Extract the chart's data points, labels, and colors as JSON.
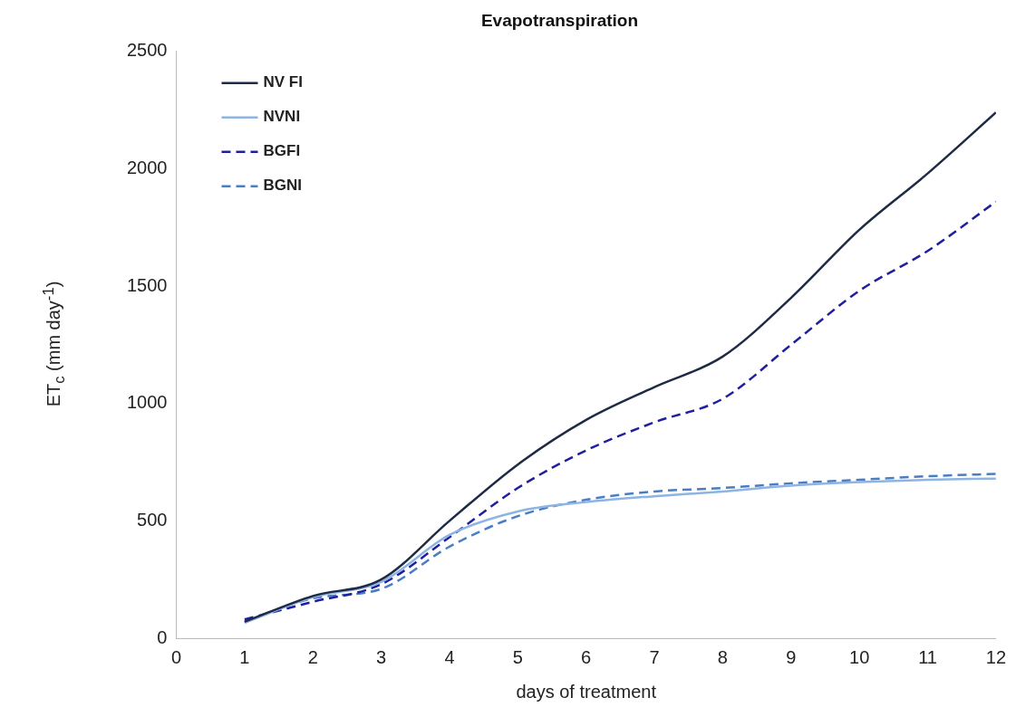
{
  "chart_data": {
    "type": "line",
    "title": "Evapotranspiration",
    "xlabel": "days of treatment",
    "ylabel": "ET$_{c}$ (mm day$^{-1}$)",
    "x": [
      1,
      2,
      3,
      4,
      5,
      6,
      7,
      8,
      9,
      10,
      11,
      12
    ],
    "xlim": [
      0,
      12
    ],
    "xticks": [
      0,
      1,
      2,
      3,
      4,
      5,
      6,
      7,
      8,
      9,
      10,
      11,
      12
    ],
    "ylim": [
      0,
      2500
    ],
    "yticks": [
      0,
      500,
      1000,
      1500,
      2000,
      2500
    ],
    "grid": false,
    "legend": "top left",
    "marker": "none",
    "series": [
      {
        "name": "NV FI",
        "color": "#1f2a44",
        "line_style": "solid",
        "values": [
          70,
          180,
          250,
          500,
          740,
          930,
          1070,
          1200,
          1450,
          1740,
          1980,
          2240
        ]
      },
      {
        "name": "NVNI",
        "color": "#8db4e2",
        "line_style": "solid",
        "values": [
          65,
          175,
          240,
          440,
          540,
          580,
          605,
          625,
          650,
          665,
          675,
          680
        ]
      },
      {
        "name": "BGFI",
        "color": "#1f1fa0",
        "line_style": "dashed",
        "values": [
          80,
          155,
          230,
          430,
          640,
          800,
          920,
          1020,
          1250,
          1480,
          1650,
          1860
        ]
      },
      {
        "name": "BGNI",
        "color": "#4a7ec4",
        "line_style": "dashed",
        "values": [
          70,
          170,
          210,
          390,
          520,
          590,
          625,
          640,
          660,
          675,
          690,
          700
        ]
      }
    ]
  }
}
